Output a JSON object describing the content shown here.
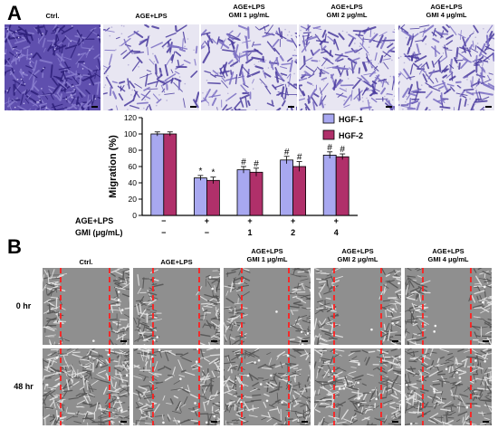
{
  "panel_a": {
    "letter": "A",
    "image_labels": [
      "Ctrl.",
      "AGE+LPS",
      "AGE+LPS\nGMI 1 μg/mL",
      "AGE+LPS\nGMI 2 μg/mL",
      "AGE+LPS\nGMI 4 μg/mL"
    ],
    "image_densities": [
      1.0,
      0.42,
      0.62,
      0.7,
      0.78
    ]
  },
  "chart_data": {
    "type": "bar",
    "ylabel": "Migration (%)",
    "ylim": [
      0,
      120
    ],
    "yticks": [
      0,
      20,
      40,
      60,
      80,
      100,
      120
    ],
    "series": [
      {
        "name": "HGF-1",
        "color": "#a8a8f0",
        "values": [
          100,
          46,
          56,
          68,
          74
        ],
        "errors": [
          2.5,
          3,
          4,
          4.5,
          4
        ]
      },
      {
        "name": "HGF-2",
        "color": "#b0306a",
        "values": [
          100,
          43,
          53,
          60,
          72
        ],
        "errors": [
          2.5,
          4,
          5,
          6,
          3.5
        ]
      }
    ],
    "markers": [
      [
        "",
        ""
      ],
      [
        "*",
        "*"
      ],
      [
        "#",
        "#"
      ],
      [
        "#",
        "#"
      ],
      [
        "#",
        "#"
      ]
    ],
    "conditions": [
      {
        "label": "AGE+LPS",
        "values": [
          "−",
          "+",
          "+",
          "+",
          "+"
        ]
      },
      {
        "label": "GMI (μg/mL)",
        "values": [
          "−",
          "−",
          "1",
          "2",
          "4"
        ]
      }
    ],
    "legend_position": "top-right"
  },
  "panel_b": {
    "letter": "B",
    "column_labels": [
      "Ctrl.",
      "AGE+LPS",
      "AGE+LPS\nGMI 1 μg/mL",
      "AGE+LPS\nGMI 2 μg/mL",
      "AGE+LPS\nGMI 4 μg/mL"
    ],
    "row_labels": [
      "0 hr",
      "48 hr"
    ],
    "gap_fill_48hr": [
      0.9,
      0.4,
      0.55,
      0.65,
      0.75
    ]
  }
}
